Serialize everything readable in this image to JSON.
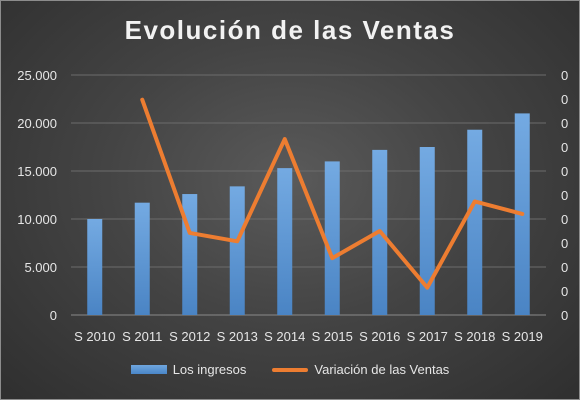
{
  "chart_data": {
    "type": "bar",
    "title": "Evolución de las Ventas",
    "categories": [
      "S 2010",
      "S 2011",
      "S 2012",
      "S 2013",
      "S 2014",
      "S 2015",
      "S 2016",
      "S 2017",
      "S 2018",
      "S 2019"
    ],
    "y_ticks": [
      "0",
      "5.000",
      "10.000",
      "15.000",
      "20.000",
      "25.000"
    ],
    "y_right_ticks": [
      "0",
      "0",
      "0",
      "0",
      "0",
      "0",
      "0",
      "0",
      "0",
      "0",
      "0"
    ],
    "ylim": [
      0,
      25000
    ],
    "y_right_lim": [
      0,
      0.1
    ],
    "legend_position": "bottom",
    "grid": true,
    "series": [
      {
        "name": "Los ingresos",
        "type": "bar",
        "axis": "left",
        "color": "#5b9bd5",
        "values": [
          10000,
          11700,
          12600,
          13400,
          15300,
          16000,
          17200,
          17500,
          19300,
          21000
        ]
      },
      {
        "name": "Variación de las Ventas",
        "type": "line",
        "axis": "right",
        "color": "#ed7d31",
        "values": [
          null,
          0.0897,
          0.0342,
          0.0307,
          0.0733,
          0.0237,
          0.035,
          0.0114,
          0.0473,
          0.0421
        ]
      }
    ]
  }
}
